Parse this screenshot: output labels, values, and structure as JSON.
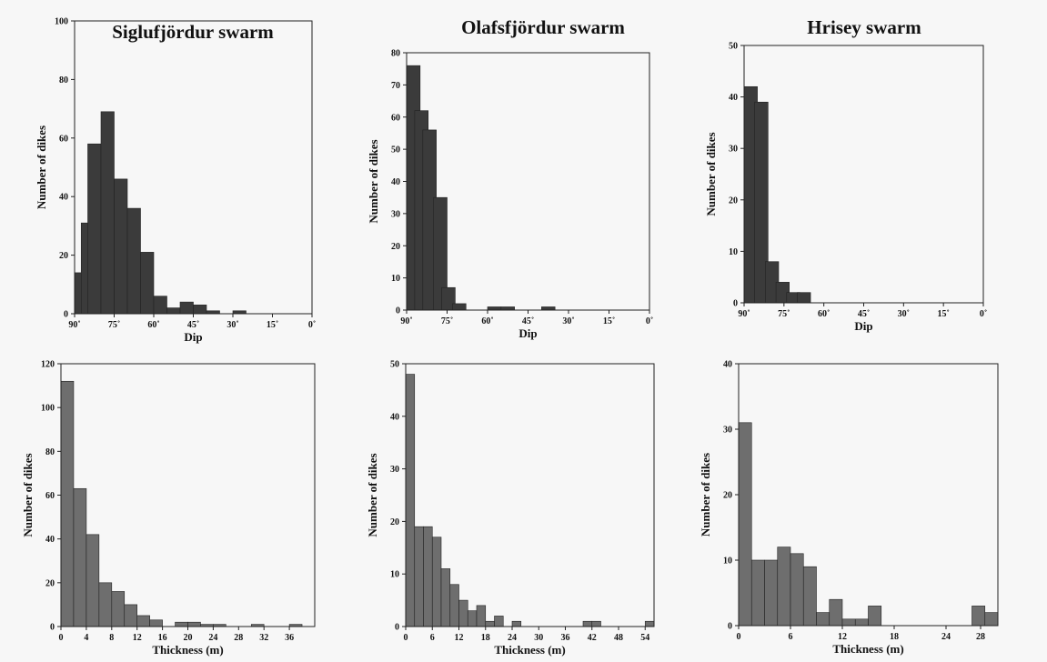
{
  "chart_data": [
    {
      "type": "bar",
      "title": "Siglufjördur swarm",
      "xlabel": "Dip",
      "ylabel": "Number of dikes",
      "x_tick_labels": [
        "90˚",
        "75˚",
        "60˚",
        "45˚",
        "30˚",
        "15˚",
        "0˚"
      ],
      "x_reversed": true,
      "xlim": [
        90,
        0
      ],
      "ylim": [
        0,
        100
      ],
      "y_ticks": [
        0,
        20,
        40,
        60,
        80,
        100
      ],
      "bin_width": 5,
      "bins": [
        {
          "start": 90,
          "value": 14
        },
        {
          "start": 87.5,
          "value": 31
        },
        {
          "start": 85,
          "value": 58
        },
        {
          "start": 80,
          "value": 69
        },
        {
          "start": 75,
          "value": 46
        },
        {
          "start": 70,
          "value": 36
        },
        {
          "start": 65,
          "value": 21
        },
        {
          "start": 60,
          "value": 6
        },
        {
          "start": 55,
          "value": 2
        },
        {
          "start": 50,
          "value": 4
        },
        {
          "start": 45,
          "value": 3
        },
        {
          "start": 40,
          "value": 1
        },
        {
          "start": 35,
          "value": 0
        },
        {
          "start": 30,
          "value": 1
        },
        {
          "start": 25,
          "value": 0
        },
        {
          "start": 20,
          "value": 0
        },
        {
          "start": 15,
          "value": 0
        },
        {
          "start": 10,
          "value": 0
        }
      ]
    },
    {
      "type": "bar",
      "title": "Olafsfjördur swarm",
      "xlabel": "Dip",
      "ylabel": "Number of dikes",
      "x_tick_labels": [
        "90˚",
        "75˚",
        "60˚",
        "45˚",
        "30˚",
        "15˚",
        "0˚"
      ],
      "x_reversed": true,
      "xlim": [
        90,
        0
      ],
      "ylim": [
        0,
        80
      ],
      "y_ticks": [
        0,
        10,
        20,
        30,
        40,
        50,
        60,
        70,
        80
      ],
      "bin_width": 5,
      "bins": [
        {
          "start": 90,
          "value": 76
        },
        {
          "start": 87,
          "value": 62
        },
        {
          "start": 84,
          "value": 56
        },
        {
          "start": 80,
          "value": 35
        },
        {
          "start": 77,
          "value": 7
        },
        {
          "start": 73,
          "value": 2
        },
        {
          "start": 70,
          "value": 0
        },
        {
          "start": 65,
          "value": 0
        },
        {
          "start": 60,
          "value": 1
        },
        {
          "start": 55,
          "value": 1
        },
        {
          "start": 50,
          "value": 0
        },
        {
          "start": 45,
          "value": 0
        },
        {
          "start": 40,
          "value": 1
        }
      ]
    },
    {
      "type": "bar",
      "title": "Hrisey swarm",
      "xlabel": "Dip",
      "ylabel": "Number of dikes",
      "x_tick_labels": [
        "90˚",
        "75˚",
        "60˚",
        "45˚",
        "30˚",
        "15˚",
        "0˚"
      ],
      "x_reversed": true,
      "xlim": [
        90,
        0
      ],
      "ylim": [
        0,
        50
      ],
      "y_ticks": [
        0,
        10,
        20,
        30,
        40,
        50
      ],
      "bin_width": 5,
      "bins": [
        {
          "start": 90,
          "value": 42
        },
        {
          "start": 86,
          "value": 39
        },
        {
          "start": 82,
          "value": 8
        },
        {
          "start": 78,
          "value": 4
        },
        {
          "start": 74,
          "value": 2
        },
        {
          "start": 70,
          "value": 2
        }
      ]
    },
    {
      "type": "bar",
      "title": "",
      "xlabel": "Thickness (m)",
      "ylabel": "Number of dikes",
      "x_tick_labels": [
        "0",
        "4",
        "8",
        "12",
        "16",
        "20",
        "24",
        "28",
        "32",
        "36"
      ],
      "xlim": [
        0,
        40
      ],
      "ylim": [
        0,
        120
      ],
      "y_ticks": [
        0,
        20,
        40,
        60,
        80,
        100,
        120
      ],
      "bin_width": 2,
      "values": [
        112,
        63,
        42,
        20,
        16,
        10,
        5,
        3,
        0,
        2,
        2,
        1,
        1,
        0,
        0,
        1,
        0,
        0,
        1,
        0
      ]
    },
    {
      "type": "bar",
      "title": "",
      "xlabel": "Thickness (m)",
      "ylabel": "Number of dikes",
      "x_tick_labels": [
        "0",
        "6",
        "12",
        "18",
        "24",
        "30",
        "36",
        "42",
        "48",
        "54"
      ],
      "xlim": [
        0,
        56
      ],
      "ylim": [
        0,
        50
      ],
      "y_ticks": [
        0,
        10,
        20,
        30,
        40,
        50
      ],
      "bin_width": 2,
      "values": [
        48,
        19,
        19,
        17,
        11,
        8,
        5,
        3,
        4,
        1,
        2,
        0,
        1,
        0,
        0,
        0,
        0,
        0,
        0,
        0,
        1,
        1,
        0,
        0,
        0,
        0,
        0,
        1
      ]
    },
    {
      "type": "bar",
      "title": "",
      "xlabel": "Thickness (m)",
      "ylabel": "Number of dikes",
      "x_tick_labels": [
        "0",
        "6",
        "12",
        "18",
        "24"
      ],
      "x_extra_tick_labels": [
        {
          "value": 28,
          "label": "28"
        }
      ],
      "xlim": [
        0,
        30
      ],
      "ylim": [
        0,
        40
      ],
      "y_ticks": [
        0,
        10,
        20,
        30,
        40
      ],
      "bin_width": 1.5,
      "values": [
        31,
        10,
        10,
        12,
        11,
        9,
        2,
        4,
        1,
        1,
        3,
        0,
        0,
        0,
        0,
        0,
        0,
        0,
        3,
        2
      ]
    }
  ]
}
